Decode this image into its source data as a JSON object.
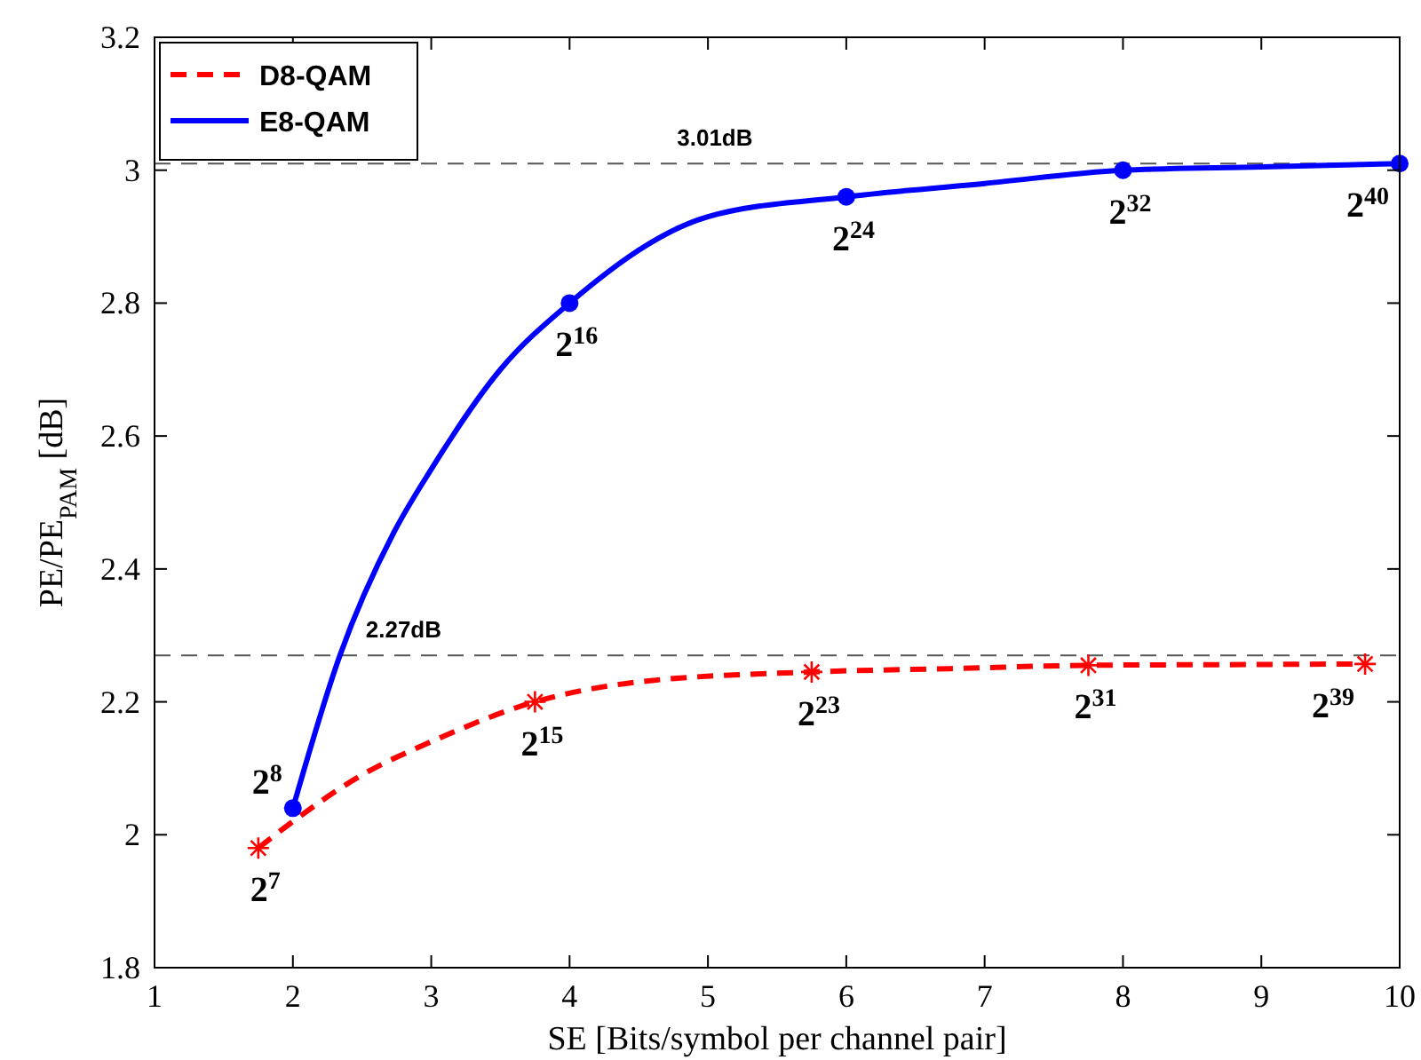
{
  "chart_data": {
    "type": "line",
    "xlabel": "SE [Bits/symbol per channel pair]",
    "ylabel": "PE/PE$_{PAM}$ [dB]",
    "xlim": [
      1,
      10
    ],
    "xticks": [
      1,
      2,
      3,
      4,
      5,
      6,
      7,
      8,
      9,
      10
    ],
    "ylim": [
      1.8,
      3.2
    ],
    "yticks": [
      1.8,
      2,
      2.2,
      2.4,
      2.6,
      2.8,
      3,
      3.2
    ],
    "grid": false,
    "legend": "top left",
    "series": [
      {
        "name": "D8-QAM",
        "color": "#ff0000",
        "line_style": "dashed",
        "marker": "none",
        "x": [
          1.75,
          2,
          2.5,
          3,
          3.75,
          4.5,
          5.75,
          6.75,
          7.75,
          8.75,
          9.75
        ],
        "values": [
          1.98,
          2.02,
          2.09,
          2.14,
          2.2,
          2.23,
          2.245,
          2.25,
          2.255,
          2.256,
          2.257
        ]
      },
      {
        "name": "E8-QAM",
        "color": "#0000ff",
        "line_style": "solid",
        "marker": "none",
        "x": [
          2,
          2.34,
          2.73,
          3,
          3.5,
          4,
          5,
          6,
          7,
          8,
          9,
          10
        ],
        "values": [
          2.04,
          2.27,
          2.455,
          2.55,
          2.7,
          2.8,
          2.93,
          2.96,
          2.98,
          3.0,
          3.005,
          3.01
        ]
      },
      {
        "type": "scatter",
        "color": "#ff0000",
        "marker": "cross",
        "x": [
          1.75,
          3.75,
          5.75,
          7.75,
          9.75
        ],
        "values": [
          1.98,
          2.2,
          2.245,
          2.255,
          2.257
        ]
      },
      {
        "type": "scatter",
        "color": "#0000ff",
        "marker": "circle",
        "x": [
          2,
          4,
          6,
          8,
          10
        ],
        "values": [
          2.04,
          2.8,
          2.96,
          3.0,
          3.01
        ]
      }
    ],
    "ref_lines": [
      {
        "axis": "y",
        "value": 3.01,
        "label": "3.01dB",
        "color": "#555555",
        "line_style": "dashed"
      },
      {
        "axis": "y",
        "value": 2.27,
        "label": "2.27dB",
        "color": "#555555",
        "line_style": "dashed"
      }
    ],
    "annotations": [
      {
        "text": "2$^{7}$",
        "x": 1.75,
        "y": 1.98
      },
      {
        "text": "2$^{15}$",
        "x": 3.75,
        "y": 2.2
      },
      {
        "text": "2$^{23}$",
        "x": 5.75,
        "y": 2.245
      },
      {
        "text": "2$^{31}$",
        "x": 7.75,
        "y": 2.255
      },
      {
        "text": "2$^{39}$",
        "x": 9.75,
        "y": 2.257
      },
      {
        "text": "2$^{8}$",
        "x": 2,
        "y": 2.04
      },
      {
        "text": "2$^{16}$",
        "x": 4,
        "y": 2.8
      },
      {
        "text": "2$^{24}$",
        "x": 6,
        "y": 2.96
      },
      {
        "text": "2$^{32}$",
        "x": 8,
        "y": 3.0
      },
      {
        "text": "2$^{40}$",
        "x": 10,
        "y": 3.01
      }
    ]
  }
}
